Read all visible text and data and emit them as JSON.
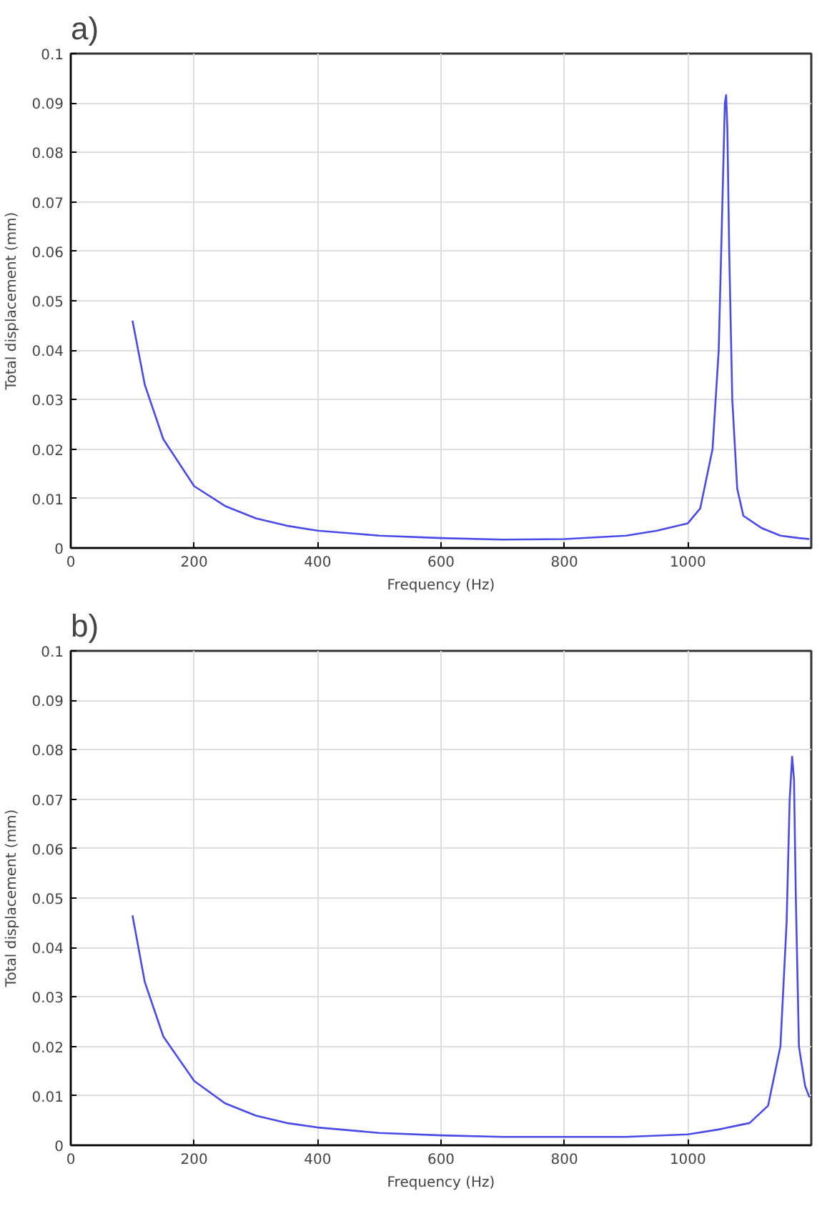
{
  "chart_data": [
    {
      "type": "line",
      "title": "a)",
      "xlabel": "Frequency (Hz)",
      "ylabel": "Total displacement (mm)",
      "xlim": [
        0,
        1200
      ],
      "xticks": [
        0,
        200,
        400,
        600,
        800,
        1000
      ],
      "ylim": [
        0,
        0.1
      ],
      "yticks": [
        0,
        0.01,
        0.02,
        0.03,
        0.04,
        0.05,
        0.06,
        0.07,
        0.08,
        0.09,
        0.1
      ],
      "grid": true,
      "line_style": "solid",
      "series": [
        {
          "color": "#4a4ae6",
          "x": [
            100,
            120,
            150,
            200,
            250,
            300,
            350,
            400,
            500,
            600,
            700,
            800,
            900,
            950,
            1000,
            1020,
            1040,
            1050,
            1055,
            1060,
            1062,
            1064,
            1067,
            1072,
            1080,
            1090,
            1120,
            1150,
            1180,
            1197
          ],
          "values": [
            0.046,
            0.033,
            0.022,
            0.0125,
            0.0085,
            0.006,
            0.0045,
            0.0035,
            0.0025,
            0.002,
            0.0017,
            0.0018,
            0.0025,
            0.0035,
            0.005,
            0.008,
            0.02,
            0.04,
            0.065,
            0.09,
            0.0916,
            0.085,
            0.06,
            0.03,
            0.012,
            0.0065,
            0.004,
            0.0025,
            0.002,
            0.0018
          ]
        }
      ]
    },
    {
      "type": "line",
      "title": "b)",
      "xlabel": "Frequency (Hz)",
      "ylabel": "Total displacement (mm)",
      "xlim": [
        0,
        1200
      ],
      "xticks": [
        0,
        200,
        400,
        600,
        800,
        1000
      ],
      "ylim": [
        0,
        0.1
      ],
      "yticks": [
        0,
        0.01,
        0.02,
        0.03,
        0.04,
        0.05,
        0.06,
        0.07,
        0.08,
        0.09,
        0.1
      ],
      "grid": true,
      "line_style": "solid",
      "series": [
        {
          "color": "#4a4ae6",
          "x": [
            100,
            120,
            150,
            200,
            250,
            300,
            350,
            400,
            500,
            600,
            700,
            800,
            900,
            1000,
            1050,
            1100,
            1130,
            1150,
            1160,
            1165,
            1169,
            1172,
            1175,
            1180,
            1190,
            1197
          ],
          "values": [
            0.0465,
            0.033,
            0.022,
            0.013,
            0.0085,
            0.006,
            0.0045,
            0.0036,
            0.0025,
            0.002,
            0.0017,
            0.0017,
            0.0017,
            0.0022,
            0.0032,
            0.0045,
            0.008,
            0.02,
            0.045,
            0.07,
            0.0786,
            0.074,
            0.05,
            0.02,
            0.012,
            0.0097
          ]
        }
      ]
    }
  ]
}
